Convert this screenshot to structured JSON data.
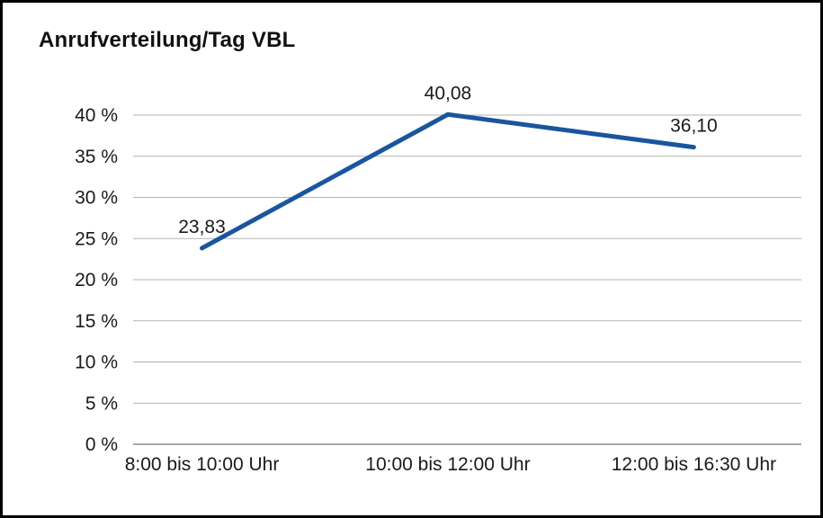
{
  "chart_data": {
    "type": "line",
    "title": "Anrufverteilung/Tag VBL",
    "categories": [
      "8:00 bis 10:00 Uhr",
      "10:00 bis 12:00 Uhr",
      "12:00 bis 16:30 Uhr"
    ],
    "values": [
      23.83,
      40.08,
      36.1
    ],
    "value_labels": [
      "23,83",
      "40,08",
      "36,10"
    ],
    "xlabel": "",
    "ylabel": "",
    "ylim": [
      0,
      40
    ],
    "ytick_step": 5,
    "ytick_labels": [
      "0 %",
      "5 %",
      "10 %",
      "15 %",
      "20 %",
      "25 %",
      "30 %",
      "35 %",
      "40 %"
    ],
    "grid": "horizontal",
    "legend": "none",
    "line_color": "#1a559e"
  }
}
